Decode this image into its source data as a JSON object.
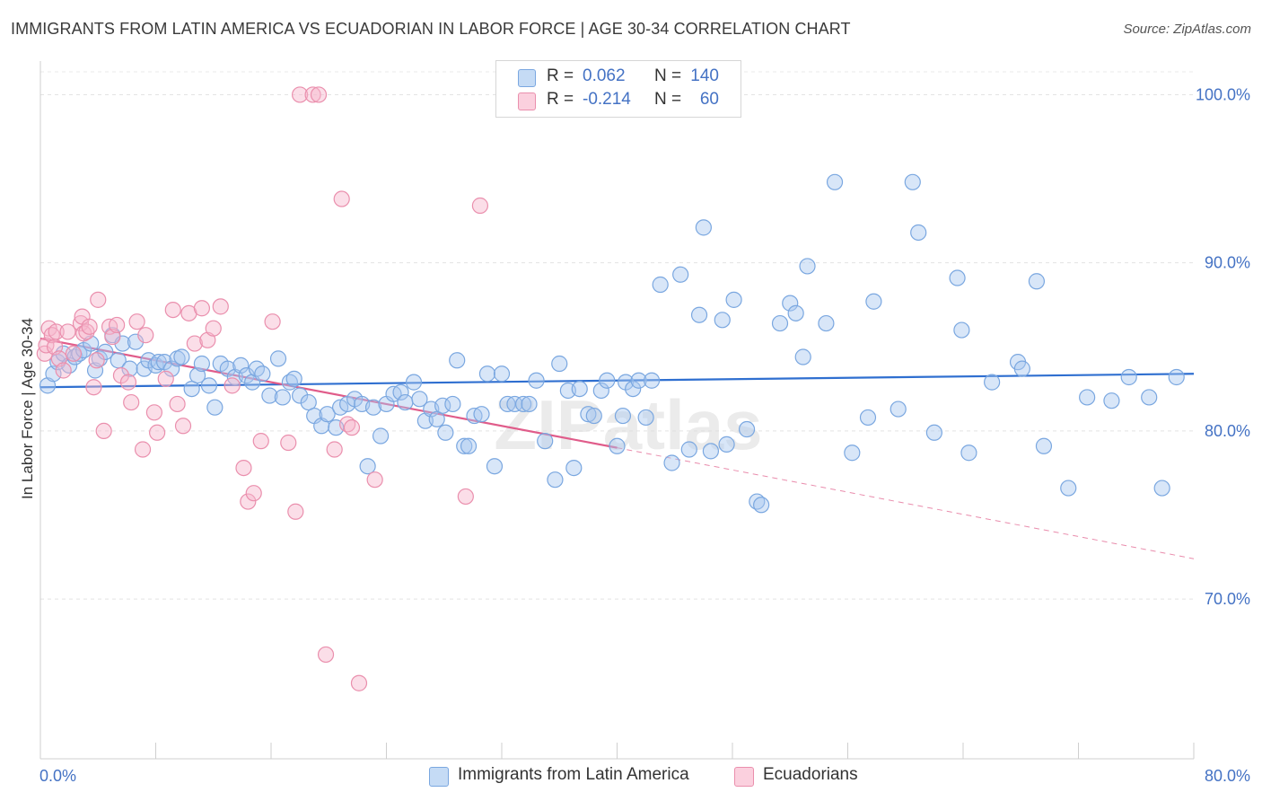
{
  "title": "IMMIGRANTS FROM LATIN AMERICA VS ECUADORIAN IN LABOR FORCE | AGE 30-34 CORRELATION CHART",
  "source": "Source: ZipAtlas.com",
  "watermark": "ZIPatlas",
  "legend_stats": [
    {
      "r_label": "R =",
      "r_value": "0.062",
      "n_label": "N =",
      "n_value": "140",
      "color": "#a8c8f0"
    },
    {
      "r_label": "R =",
      "r_value": "-0.214",
      "n_label": "N =",
      "n_value": "60",
      "color": "#f7b6cb"
    }
  ],
  "chart_data": {
    "type": "scatter",
    "title": "IMMIGRANTS FROM LATIN AMERICA VS ECUADORIAN IN LABOR FORCE | AGE 30-34 CORRELATION CHART",
    "xlabel": "",
    "ylabel": "In Labor Force | Age 30-34",
    "xlim": [
      0,
      80
    ],
    "ylim": [
      60.5,
      102
    ],
    "x_tick_labels": [
      "0.0%",
      "80.0%"
    ],
    "y_ticks": [
      70,
      80,
      90,
      100
    ],
    "y_tick_labels": [
      "70.0%",
      "80.0%",
      "90.0%",
      "100.0%"
    ],
    "grid": true,
    "legend_position": "bottom",
    "series": [
      {
        "name": "Immigrants from Latin America",
        "color": "#a8c8f0",
        "stroke": "#7aa7e0",
        "trend": {
          "x": [
            0,
            80
          ],
          "y": [
            82.6,
            83.4
          ],
          "color": "#2f6fd0"
        },
        "points": [
          [
            0.5,
            82.7
          ],
          [
            0.9,
            83.4
          ],
          [
            1.2,
            84.1
          ],
          [
            1.6,
            84.6
          ],
          [
            2.0,
            83.9
          ],
          [
            2.4,
            84.4
          ],
          [
            2.7,
            84.6
          ],
          [
            3.0,
            84.8
          ],
          [
            3.5,
            85.2
          ],
          [
            3.8,
            83.6
          ],
          [
            4.1,
            84.3
          ],
          [
            4.5,
            84.7
          ],
          [
            5.0,
            85.7
          ],
          [
            5.4,
            84.2
          ],
          [
            5.7,
            85.2
          ],
          [
            6.2,
            83.7
          ],
          [
            6.6,
            85.3
          ],
          [
            7.2,
            83.7
          ],
          [
            7.5,
            84.2
          ],
          [
            8.0,
            83.9
          ],
          [
            8.2,
            84.1
          ],
          [
            8.6,
            84.1
          ],
          [
            9.1,
            83.7
          ],
          [
            9.5,
            84.3
          ],
          [
            9.8,
            84.4
          ],
          [
            10.5,
            82.5
          ],
          [
            10.9,
            83.3
          ],
          [
            11.2,
            84.0
          ],
          [
            11.7,
            82.7
          ],
          [
            12.1,
            81.4
          ],
          [
            12.5,
            84.0
          ],
          [
            13.0,
            83.7
          ],
          [
            13.5,
            83.2
          ],
          [
            13.9,
            83.9
          ],
          [
            14.3,
            83.3
          ],
          [
            14.7,
            82.9
          ],
          [
            15.0,
            83.7
          ],
          [
            15.4,
            83.4
          ],
          [
            15.9,
            82.1
          ],
          [
            16.5,
            84.3
          ],
          [
            16.8,
            82.0
          ],
          [
            17.3,
            82.9
          ],
          [
            17.6,
            83.1
          ],
          [
            18.0,
            82.1
          ],
          [
            18.6,
            81.7
          ],
          [
            19.0,
            80.9
          ],
          [
            19.5,
            80.3
          ],
          [
            19.9,
            81.0
          ],
          [
            20.5,
            80.2
          ],
          [
            20.8,
            81.4
          ],
          [
            21.3,
            81.6
          ],
          [
            21.8,
            81.9
          ],
          [
            22.3,
            81.6
          ],
          [
            22.7,
            77.9
          ],
          [
            23.1,
            81.4
          ],
          [
            23.6,
            79.7
          ],
          [
            24.0,
            81.6
          ],
          [
            24.5,
            82.2
          ],
          [
            25.0,
            82.3
          ],
          [
            25.3,
            81.7
          ],
          [
            25.9,
            82.9
          ],
          [
            26.3,
            81.9
          ],
          [
            26.7,
            80.6
          ],
          [
            27.1,
            81.3
          ],
          [
            27.5,
            80.7
          ],
          [
            27.9,
            81.5
          ],
          [
            28.1,
            79.9
          ],
          [
            28.6,
            81.6
          ],
          [
            28.9,
            84.2
          ],
          [
            29.4,
            79.1
          ],
          [
            29.7,
            79.1
          ],
          [
            30.1,
            80.9
          ],
          [
            30.6,
            81.0
          ],
          [
            31.0,
            83.4
          ],
          [
            31.5,
            77.9
          ],
          [
            32.0,
            83.4
          ],
          [
            32.4,
            81.6
          ],
          [
            32.9,
            81.6
          ],
          [
            33.5,
            81.6
          ],
          [
            33.9,
            81.6
          ],
          [
            34.4,
            83.0
          ],
          [
            35.0,
            79.4
          ],
          [
            35.7,
            77.1
          ],
          [
            36.0,
            84.0
          ],
          [
            36.6,
            82.4
          ],
          [
            37.0,
            77.8
          ],
          [
            37.4,
            82.5
          ],
          [
            38.0,
            81.0
          ],
          [
            38.4,
            80.9
          ],
          [
            38.9,
            82.4
          ],
          [
            39.3,
            83.0
          ],
          [
            40.0,
            79.1
          ],
          [
            40.4,
            80.9
          ],
          [
            40.6,
            82.9
          ],
          [
            41.1,
            82.5
          ],
          [
            41.5,
            83.0
          ],
          [
            42.0,
            80.8
          ],
          [
            42.4,
            83.0
          ],
          [
            43.0,
            88.7
          ],
          [
            43.8,
            78.1
          ],
          [
            44.4,
            89.3
          ],
          [
            45.0,
            78.9
          ],
          [
            45.7,
            86.9
          ],
          [
            46.0,
            92.1
          ],
          [
            46.5,
            78.8
          ],
          [
            47.3,
            86.6
          ],
          [
            47.6,
            79.2
          ],
          [
            48.1,
            87.8
          ],
          [
            49.0,
            80.1
          ],
          [
            49.7,
            75.8
          ],
          [
            50.0,
            75.6
          ],
          [
            51.3,
            86.4
          ],
          [
            52.0,
            87.6
          ],
          [
            52.4,
            87.0
          ],
          [
            52.9,
            84.4
          ],
          [
            53.2,
            89.8
          ],
          [
            54.5,
            86.4
          ],
          [
            55.1,
            94.8
          ],
          [
            56.3,
            78.7
          ],
          [
            57.4,
            80.8
          ],
          [
            57.8,
            87.7
          ],
          [
            59.5,
            81.3
          ],
          [
            60.5,
            94.8
          ],
          [
            60.9,
            91.8
          ],
          [
            62.0,
            79.9
          ],
          [
            63.6,
            89.1
          ],
          [
            63.9,
            86.0
          ],
          [
            64.4,
            78.7
          ],
          [
            66.0,
            82.9
          ],
          [
            67.8,
            84.1
          ],
          [
            68.1,
            83.7
          ],
          [
            69.1,
            88.9
          ],
          [
            69.6,
            79.1
          ],
          [
            71.3,
            76.6
          ],
          [
            72.6,
            82.0
          ],
          [
            74.3,
            81.8
          ],
          [
            75.5,
            83.2
          ],
          [
            76.9,
            82.0
          ],
          [
            77.8,
            76.6
          ],
          [
            78.8,
            83.2
          ]
        ]
      },
      {
        "name": "Ecuadorians",
        "color": "#f7b6cb",
        "stroke": "#ea8fad",
        "trend": {
          "x": [
            0,
            40
          ],
          "y": [
            85.5,
            79.0
          ],
          "color": "#e05c8a"
        },
        "trend_extension": {
          "x": [
            40,
            80
          ],
          "y": [
            79.0,
            72.4
          ]
        },
        "points": [
          [
            0.3,
            84.6
          ],
          [
            0.4,
            85.1
          ],
          [
            0.6,
            86.1
          ],
          [
            0.8,
            85.7
          ],
          [
            1.0,
            85.0
          ],
          [
            1.1,
            85.9
          ],
          [
            1.3,
            84.3
          ],
          [
            1.6,
            83.6
          ],
          [
            1.9,
            85.9
          ],
          [
            2.3,
            84.6
          ],
          [
            2.8,
            86.4
          ],
          [
            2.9,
            86.8
          ],
          [
            3.0,
            85.8
          ],
          [
            3.2,
            85.9
          ],
          [
            3.4,
            86.2
          ],
          [
            3.7,
            82.6
          ],
          [
            3.9,
            84.2
          ],
          [
            4.0,
            87.8
          ],
          [
            4.4,
            80.0
          ],
          [
            4.8,
            86.2
          ],
          [
            5.0,
            85.6
          ],
          [
            5.3,
            86.3
          ],
          [
            5.6,
            83.3
          ],
          [
            6.1,
            82.9
          ],
          [
            6.3,
            81.7
          ],
          [
            6.7,
            86.5
          ],
          [
            7.1,
            78.9
          ],
          [
            7.3,
            85.7
          ],
          [
            7.9,
            81.1
          ],
          [
            8.1,
            79.9
          ],
          [
            8.7,
            83.1
          ],
          [
            9.2,
            87.2
          ],
          [
            9.5,
            81.6
          ],
          [
            9.9,
            80.3
          ],
          [
            10.3,
            87.0
          ],
          [
            10.7,
            85.2
          ],
          [
            11.2,
            87.3
          ],
          [
            11.6,
            85.4
          ],
          [
            12.0,
            86.1
          ],
          [
            12.5,
            87.4
          ],
          [
            13.3,
            82.7
          ],
          [
            14.1,
            77.8
          ],
          [
            14.4,
            75.8
          ],
          [
            14.8,
            76.3
          ],
          [
            15.3,
            79.4
          ],
          [
            16.1,
            86.5
          ],
          [
            17.2,
            79.3
          ],
          [
            17.7,
            75.2
          ],
          [
            18.0,
            100.0
          ],
          [
            18.9,
            100.0
          ],
          [
            19.3,
            100.0
          ],
          [
            19.8,
            66.7
          ],
          [
            20.4,
            78.9
          ],
          [
            20.9,
            93.8
          ],
          [
            21.3,
            80.4
          ],
          [
            21.6,
            80.2
          ],
          [
            22.1,
            65.0
          ],
          [
            23.2,
            77.1
          ],
          [
            29.5,
            76.1
          ],
          [
            30.5,
            93.4
          ]
        ]
      }
    ]
  }
}
